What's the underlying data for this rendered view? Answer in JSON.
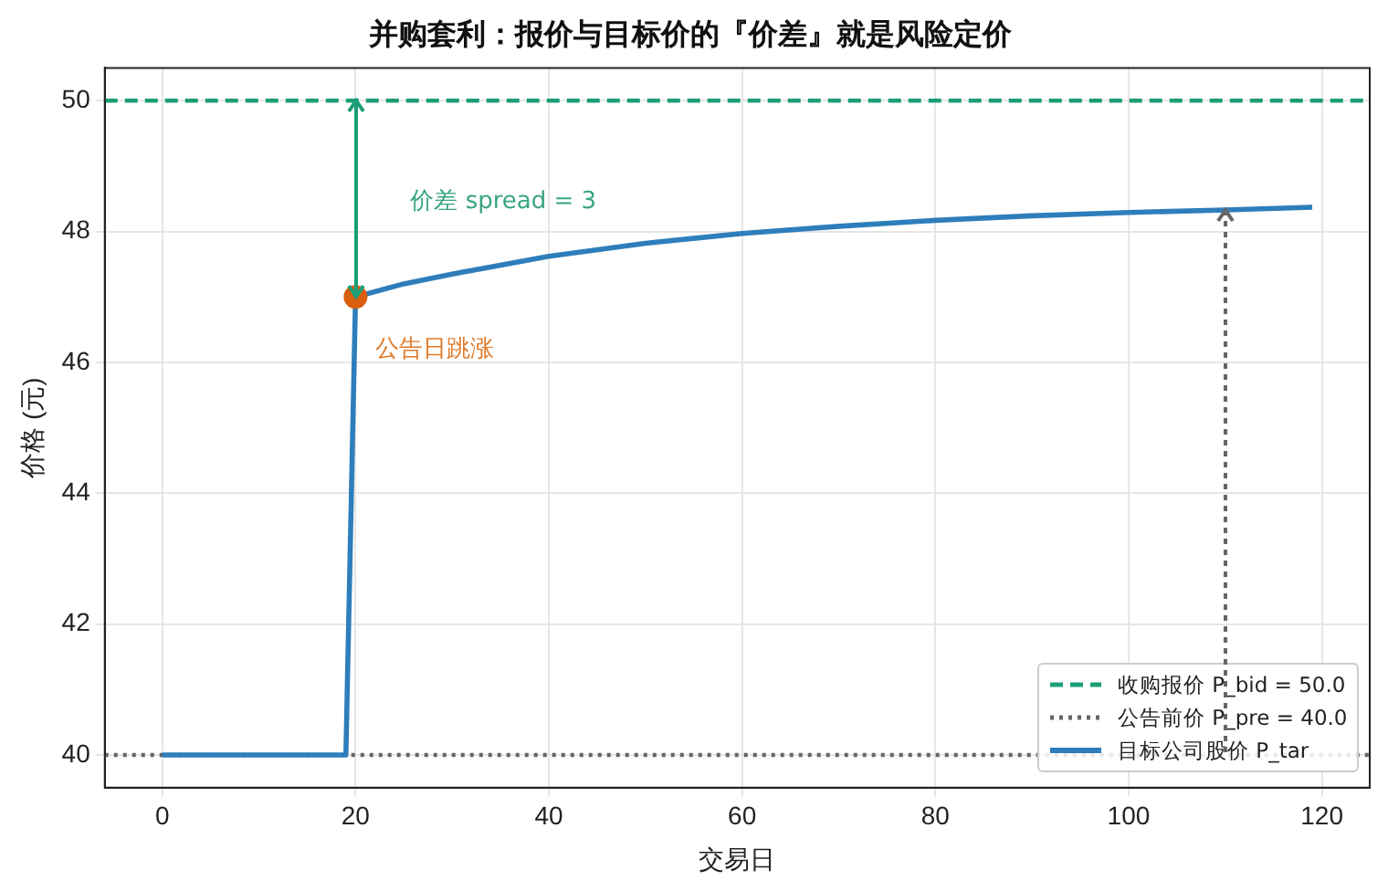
{
  "chart_data": {
    "type": "line",
    "title": "并购套利：报价与目标价的『价差』就是风险定价",
    "xlabel": "交易日",
    "ylabel": "价格 (元)",
    "xlim": [
      -5.95,
      124.95
    ],
    "xticks": [
      0,
      20,
      40,
      60,
      80,
      100,
      120
    ],
    "ylim": [
      39.5,
      50.5
    ],
    "yticks": [
      40,
      42,
      44,
      46,
      48,
      50
    ],
    "grid": true,
    "legend": "bottom right",
    "series": [
      {
        "name": "目标公司股价 P_tar",
        "type": "line",
        "color": "#2e7ebb",
        "x": [
          0,
          19,
          20,
          25,
          30,
          40,
          50,
          60,
          70,
          80,
          90,
          100,
          110,
          119
        ],
        "values": [
          40,
          40,
          47,
          47.2,
          47.35,
          47.62,
          47.82,
          47.97,
          48.08,
          48.17,
          48.24,
          48.29,
          48.33,
          48.37
        ]
      },
      {
        "type": "scatter",
        "color": "#d95f0e",
        "marker": "circle",
        "x": [
          20
        ],
        "values": [
          47
        ]
      }
    ],
    "ref_lines": [
      {
        "axis": "y",
        "value": 50,
        "label": "收购报价 P_bid = 50.0",
        "color": "#1b9e77",
        "line_style": "dashed"
      },
      {
        "axis": "y",
        "value": 40,
        "label": "公告前价 P_pre = 40.0",
        "color": "#666666",
        "line_style": "dotted"
      }
    ],
    "annotations": [
      "价差 spread = 3",
      "公告日跳涨"
    ]
  }
}
